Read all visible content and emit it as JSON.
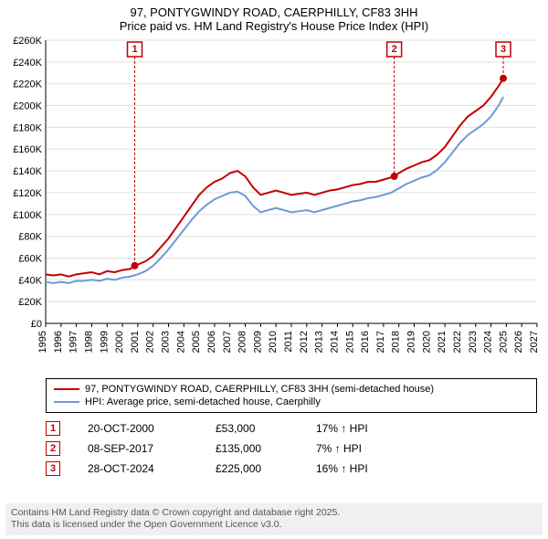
{
  "title_line1": "97, PONTYGWINDY ROAD, CAERPHILLY, CF83 3HH",
  "title_line2": "Price paid vs. HM Land Registry's House Price Index (HPI)",
  "chart": {
    "type": "line",
    "background_color": "#ffffff",
    "grid_color": "#e0e0e0",
    "axis_color": "#000000",
    "x": {
      "min": 1995,
      "max": 2027,
      "ticks": [
        1995,
        1996,
        1997,
        1998,
        1999,
        2000,
        2001,
        2002,
        2003,
        2004,
        2005,
        2006,
        2007,
        2008,
        2009,
        2010,
        2011,
        2012,
        2013,
        2014,
        2015,
        2016,
        2017,
        2018,
        2019,
        2020,
        2021,
        2022,
        2023,
        2024,
        2025,
        2026,
        2027
      ],
      "tick_fontsize": 11
    },
    "y": {
      "min": 0,
      "max": 260000,
      "ticks": [
        0,
        20000,
        40000,
        60000,
        80000,
        100000,
        120000,
        140000,
        160000,
        180000,
        200000,
        220000,
        240000,
        260000
      ],
      "tick_labels": [
        "£0",
        "£20K",
        "£40K",
        "£60K",
        "£80K",
        "£100K",
        "£120K",
        "£140K",
        "£160K",
        "£180K",
        "£200K",
        "£220K",
        "£240K",
        "£260K"
      ],
      "tick_fontsize": 11
    },
    "series": [
      {
        "id": "price_paid",
        "label": "97, PONTYGWINDY ROAD, CAERPHILLY, CF83 3HH (semi-detached house)",
        "color": "#c00000",
        "line_width": 2,
        "points": [
          [
            1995.0,
            45000
          ],
          [
            1995.5,
            44000
          ],
          [
            1996.0,
            45000
          ],
          [
            1996.5,
            43000
          ],
          [
            1997.0,
            45000
          ],
          [
            1997.5,
            46000
          ],
          [
            1998.0,
            47000
          ],
          [
            1998.5,
            45000
          ],
          [
            1999.0,
            48000
          ],
          [
            1999.5,
            47000
          ],
          [
            2000.0,
            49000
          ],
          [
            2000.5,
            50000
          ],
          [
            2000.8,
            53000
          ],
          [
            2001.0,
            54000
          ],
          [
            2001.5,
            57000
          ],
          [
            2002.0,
            62000
          ],
          [
            2002.5,
            70000
          ],
          [
            2003.0,
            78000
          ],
          [
            2003.5,
            88000
          ],
          [
            2004.0,
            98000
          ],
          [
            2004.5,
            108000
          ],
          [
            2005.0,
            118000
          ],
          [
            2005.5,
            125000
          ],
          [
            2006.0,
            130000
          ],
          [
            2006.5,
            133000
          ],
          [
            2007.0,
            138000
          ],
          [
            2007.5,
            140000
          ],
          [
            2008.0,
            135000
          ],
          [
            2008.5,
            125000
          ],
          [
            2009.0,
            118000
          ],
          [
            2009.5,
            120000
          ],
          [
            2010.0,
            122000
          ],
          [
            2010.5,
            120000
          ],
          [
            2011.0,
            118000
          ],
          [
            2011.5,
            119000
          ],
          [
            2012.0,
            120000
          ],
          [
            2012.5,
            118000
          ],
          [
            2013.0,
            120000
          ],
          [
            2013.5,
            122000
          ],
          [
            2014.0,
            123000
          ],
          [
            2014.5,
            125000
          ],
          [
            2015.0,
            127000
          ],
          [
            2015.5,
            128000
          ],
          [
            2016.0,
            130000
          ],
          [
            2016.5,
            130000
          ],
          [
            2017.0,
            132000
          ],
          [
            2017.5,
            134000
          ],
          [
            2017.7,
            135000
          ],
          [
            2018.0,
            138000
          ],
          [
            2018.5,
            142000
          ],
          [
            2019.0,
            145000
          ],
          [
            2019.5,
            148000
          ],
          [
            2020.0,
            150000
          ],
          [
            2020.5,
            155000
          ],
          [
            2021.0,
            162000
          ],
          [
            2021.5,
            172000
          ],
          [
            2022.0,
            182000
          ],
          [
            2022.5,
            190000
          ],
          [
            2023.0,
            195000
          ],
          [
            2023.5,
            200000
          ],
          [
            2024.0,
            208000
          ],
          [
            2024.5,
            218000
          ],
          [
            2024.8,
            225000
          ]
        ]
      },
      {
        "id": "hpi",
        "label": "HPI: Average price, semi-detached house, Caerphilly",
        "color": "#6b9bd1",
        "line_width": 2,
        "points": [
          [
            1995.0,
            38000
          ],
          [
            1995.5,
            37000
          ],
          [
            1996.0,
            38000
          ],
          [
            1996.5,
            37000
          ],
          [
            1997.0,
            39000
          ],
          [
            1997.5,
            39000
          ],
          [
            1998.0,
            40000
          ],
          [
            1998.5,
            39000
          ],
          [
            1999.0,
            41000
          ],
          [
            1999.5,
            40000
          ],
          [
            2000.0,
            42000
          ],
          [
            2000.5,
            43000
          ],
          [
            2001.0,
            45000
          ],
          [
            2001.5,
            48000
          ],
          [
            2002.0,
            53000
          ],
          [
            2002.5,
            60000
          ],
          [
            2003.0,
            68000
          ],
          [
            2003.5,
            77000
          ],
          [
            2004.0,
            86000
          ],
          [
            2004.5,
            95000
          ],
          [
            2005.0,
            103000
          ],
          [
            2005.5,
            109000
          ],
          [
            2006.0,
            114000
          ],
          [
            2006.5,
            117000
          ],
          [
            2007.0,
            120000
          ],
          [
            2007.5,
            121000
          ],
          [
            2008.0,
            117000
          ],
          [
            2008.5,
            108000
          ],
          [
            2009.0,
            102000
          ],
          [
            2009.5,
            104000
          ],
          [
            2010.0,
            106000
          ],
          [
            2010.5,
            104000
          ],
          [
            2011.0,
            102000
          ],
          [
            2011.5,
            103000
          ],
          [
            2012.0,
            104000
          ],
          [
            2012.5,
            102000
          ],
          [
            2013.0,
            104000
          ],
          [
            2013.5,
            106000
          ],
          [
            2014.0,
            108000
          ],
          [
            2014.5,
            110000
          ],
          [
            2015.0,
            112000
          ],
          [
            2015.5,
            113000
          ],
          [
            2016.0,
            115000
          ],
          [
            2016.5,
            116000
          ],
          [
            2017.0,
            118000
          ],
          [
            2017.5,
            120000
          ],
          [
            2018.0,
            124000
          ],
          [
            2018.5,
            128000
          ],
          [
            2019.0,
            131000
          ],
          [
            2019.5,
            134000
          ],
          [
            2020.0,
            136000
          ],
          [
            2020.5,
            141000
          ],
          [
            2021.0,
            148000
          ],
          [
            2021.5,
            157000
          ],
          [
            2022.0,
            166000
          ],
          [
            2022.5,
            173000
          ],
          [
            2023.0,
            178000
          ],
          [
            2023.5,
            183000
          ],
          [
            2024.0,
            190000
          ],
          [
            2024.5,
            200000
          ],
          [
            2024.8,
            208000
          ]
        ]
      }
    ],
    "callouts": [
      {
        "n": "1",
        "year": 2000.8,
        "price": 53000
      },
      {
        "n": "2",
        "year": 2017.7,
        "price": 135000
      },
      {
        "n": "3",
        "year": 2024.8,
        "price": 225000
      }
    ]
  },
  "legend": {
    "items": [
      {
        "color": "#c00000",
        "label": "97, PONTYGWINDY ROAD, CAERPHILLY, CF83 3HH (semi-detached house)"
      },
      {
        "color": "#6b9bd1",
        "label": "HPI: Average price, semi-detached house, Caerphilly"
      }
    ]
  },
  "markers": [
    {
      "n": "1",
      "date": "20-OCT-2000",
      "price": "£53,000",
      "pct": "17%",
      "suffix": "↑ HPI"
    },
    {
      "n": "2",
      "date": "08-SEP-2017",
      "price": "£135,000",
      "pct": "7%",
      "suffix": "↑ HPI"
    },
    {
      "n": "3",
      "date": "28-OCT-2024",
      "price": "£225,000",
      "pct": "16%",
      "suffix": "↑ HPI"
    }
  ],
  "attribution_line1": "Contains HM Land Registry data © Crown copyright and database right 2025.",
  "attribution_line2": "This data is licensed under the Open Government Licence v3.0."
}
